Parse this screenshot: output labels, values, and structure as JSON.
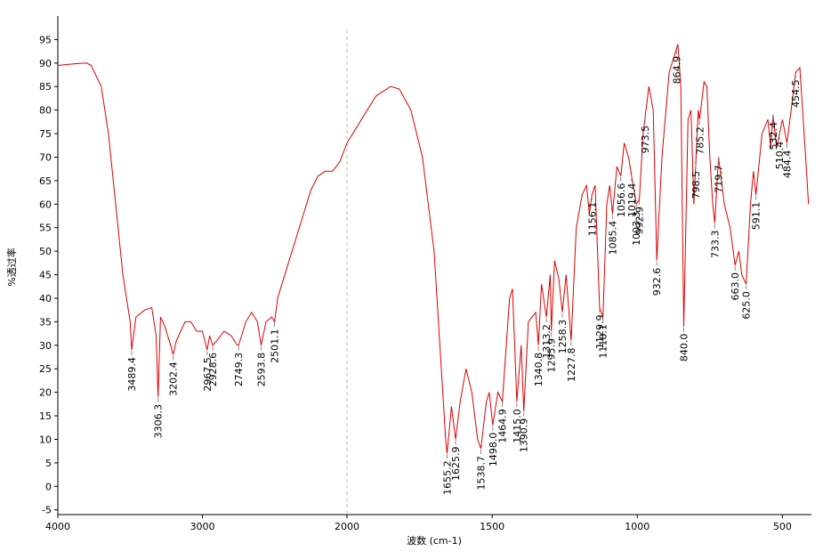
{
  "chart_data": {
    "type": "line",
    "xlabel": "波数 (cm-1)",
    "ylabel": "%透过率",
    "xlim": [
      4000,
      400
    ],
    "x_break": 2000,
    "ylim": [
      -6,
      100
    ],
    "xticks": [
      4000,
      3000,
      2000,
      1500,
      1000,
      500
    ],
    "yticks": [
      -5,
      0,
      5,
      10,
      15,
      20,
      25,
      30,
      35,
      40,
      45,
      50,
      55,
      60,
      65,
      70,
      75,
      80,
      85,
      90,
      95
    ],
    "color": "#dd0000",
    "x": [
      4000,
      3900,
      3800,
      3770,
      3700,
      3650,
      3600,
      3550,
      3500,
      3489.4,
      3460,
      3400,
      3350,
      3320,
      3306.3,
      3290,
      3260,
      3220,
      3202.4,
      3180,
      3120,
      3080,
      3040,
      3000,
      2967.5,
      2950,
      2928.6,
      2900,
      2850,
      2800,
      2760,
      2749.3,
      2700,
      2660,
      2620,
      2593.8,
      2560,
      2520,
      2501.1,
      2480,
      2400,
      2300,
      2250,
      2200,
      2150,
      2100,
      2050,
      2000,
      1950,
      1900,
      1850,
      1820,
      1780,
      1740,
      1700,
      1680,
      1660,
      1655.2,
      1640,
      1625.9,
      1610,
      1590,
      1570,
      1550,
      1538.7,
      1520,
      1510,
      1498,
      1480,
      1464.9,
      1440,
      1430,
      1415,
      1400,
      1390.9,
      1375,
      1350,
      1340.8,
      1330,
      1313.2,
      1300,
      1295.9,
      1285,
      1270,
      1258.3,
      1245,
      1227.8,
      1210,
      1190,
      1175,
      1165,
      1156.1,
      1145,
      1129.9,
      1118.1,
      1105,
      1095,
      1085.4,
      1070,
      1056.6,
      1045,
      1030,
      1019.4,
      1003.3,
      992.9,
      980,
      960,
      945,
      932.6,
      915,
      890,
      860,
      850,
      840,
      825,
      815,
      804.9,
      790,
      785.2,
      770,
      760,
      750,
      740,
      733.3,
      720,
      710,
      700,
      680,
      663,
      650,
      640,
      625,
      610,
      600,
      591.1,
      570,
      550,
      540,
      532.4,
      520,
      500,
      484.4,
      470,
      454.5,
      440,
      420,
      410
    ],
    "values": [
      89.5,
      89.8,
      90,
      89.5,
      85,
      75,
      60,
      45,
      35,
      29,
      36,
      37.5,
      38,
      32,
      19,
      36,
      34,
      30,
      28,
      31,
      35,
      35,
      33,
      33,
      29,
      32,
      30,
      31,
      33,
      32,
      30,
      30,
      35,
      37,
      35,
      30,
      35,
      36,
      35,
      40,
      48,
      58,
      63,
      66,
      67,
      67,
      69,
      73,
      78,
      83,
      85,
      84.5,
      80,
      70,
      50,
      30,
      10,
      7,
      17,
      10,
      18,
      25,
      20,
      10,
      8,
      18,
      20,
      13,
      20,
      18,
      40,
      42,
      18,
      30,
      16,
      35,
      37,
      30,
      43,
      36,
      45,
      33,
      48,
      44,
      37,
      45,
      31,
      55,
      62,
      64,
      58,
      62,
      64,
      38,
      36,
      60,
      64,
      58,
      68,
      66,
      73,
      70,
      66,
      60,
      61,
      75,
      85,
      80,
      48,
      70,
      88,
      94,
      85,
      34,
      78,
      80,
      60,
      80,
      78,
      86,
      85,
      70,
      60,
      56,
      70,
      65,
      60,
      55,
      47,
      50,
      45,
      43,
      60,
      67,
      62,
      75,
      78,
      72,
      79,
      72,
      78,
      73,
      80,
      88,
      89,
      70,
      60
    ],
    "annotations": [
      3489.4,
      3306.3,
      3202.4,
      2967.5,
      2928.6,
      2749.3,
      2593.8,
      2501.1,
      1655.2,
      1625.9,
      1538.7,
      {
        "value": 1498,
        "label": "1498.0"
      },
      1464.9,
      {
        "value": 1415,
        "label": "1415.0"
      },
      1390.9,
      1340.8,
      1313.2,
      1295.9,
      1258.3,
      1227.8,
      1156.1,
      1129.9,
      1118.1,
      1085.4,
      1056.6,
      1019.4,
      1003.3,
      992.9,
      973.5,
      932.6,
      864.9,
      {
        "value": 840,
        "label": "840.0"
      },
      798.5,
      785.2,
      733.3,
      719.7,
      {
        "value": 663,
        "label": "663.0"
      },
      {
        "value": 625,
        "label": "625.0"
      },
      591.1,
      532.4,
      510.4,
      484.4,
      454.5
    ]
  }
}
